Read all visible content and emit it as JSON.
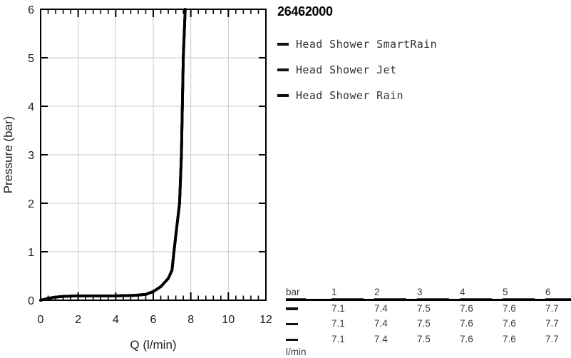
{
  "title": "26462000",
  "colors": {
    "line": "#000000",
    "grid": "#c9c9c9",
    "axis": "#000000",
    "chart_text": "#1c1c1c",
    "table_text": "#3a3a3a"
  },
  "table": {
    "corner_label": "bar",
    "unit_label": "l/min",
    "pressure_columns": [
      "1",
      "2",
      "3",
      "4",
      "5",
      "6"
    ],
    "rows": [
      {
        "series": "Head Shower SmartRain",
        "values": [
          "7.1",
          "7.4",
          "7.5",
          "7.6",
          "7.6",
          "7.7"
        ]
      },
      {
        "series": "Head Shower Jet",
        "values": [
          "7.1",
          "7.4",
          "7.5",
          "7.6",
          "7.6",
          "7.7"
        ]
      },
      {
        "series": "Head Shower Rain",
        "values": [
          "7.1",
          "7.4",
          "7.5",
          "7.6",
          "7.6",
          "7.7"
        ]
      }
    ]
  },
  "chart_data": {
    "type": "line",
    "title": "26462000",
    "xlabel": "Q (l/min)",
    "ylabel": "Pressure (bar)",
    "xlim": [
      0,
      12
    ],
    "ylim": [
      0,
      6
    ],
    "x_major_ticks": [
      0,
      2,
      4,
      6,
      8,
      10,
      12
    ],
    "x_minor_step": 0.4,
    "y_major_ticks": [
      0,
      1,
      2,
      3,
      4,
      5,
      6
    ],
    "grid": true,
    "legend_position": "right",
    "series": [
      {
        "name": "Head Shower SmartRain",
        "color": "#000000",
        "points": [
          [
            0,
            0
          ],
          [
            0.3,
            0.03
          ],
          [
            0.7,
            0.06
          ],
          [
            1.2,
            0.08
          ],
          [
            2,
            0.09
          ],
          [
            3,
            0.09
          ],
          [
            4,
            0.09
          ],
          [
            5,
            0.1
          ],
          [
            5.6,
            0.12
          ],
          [
            6,
            0.18
          ],
          [
            6.4,
            0.28
          ],
          [
            6.8,
            0.45
          ],
          [
            7.0,
            0.62
          ],
          [
            7.1,
            1.0
          ],
          [
            7.25,
            1.5
          ],
          [
            7.4,
            2.0
          ],
          [
            7.5,
            3.0
          ],
          [
            7.55,
            4.0
          ],
          [
            7.6,
            5.0
          ],
          [
            7.7,
            6.0
          ]
        ]
      },
      {
        "name": "Head Shower Jet",
        "color": "#000000",
        "points": [
          [
            0,
            0
          ],
          [
            0.3,
            0.03
          ],
          [
            0.7,
            0.06
          ],
          [
            1.2,
            0.08
          ],
          [
            2,
            0.09
          ],
          [
            3,
            0.09
          ],
          [
            4,
            0.09
          ],
          [
            5,
            0.1
          ],
          [
            5.6,
            0.12
          ],
          [
            6,
            0.18
          ],
          [
            6.4,
            0.28
          ],
          [
            6.8,
            0.45
          ],
          [
            7.0,
            0.62
          ],
          [
            7.1,
            1.0
          ],
          [
            7.25,
            1.5
          ],
          [
            7.4,
            2.0
          ],
          [
            7.5,
            3.0
          ],
          [
            7.55,
            4.0
          ],
          [
            7.6,
            5.0
          ],
          [
            7.7,
            6.0
          ]
        ]
      },
      {
        "name": "Head Shower Rain",
        "color": "#000000",
        "points": [
          [
            0,
            0
          ],
          [
            0.3,
            0.03
          ],
          [
            0.7,
            0.06
          ],
          [
            1.2,
            0.08
          ],
          [
            2,
            0.09
          ],
          [
            3,
            0.09
          ],
          [
            4,
            0.09
          ],
          [
            5,
            0.1
          ],
          [
            5.6,
            0.12
          ],
          [
            6,
            0.18
          ],
          [
            6.4,
            0.28
          ],
          [
            6.8,
            0.45
          ],
          [
            7.0,
            0.62
          ],
          [
            7.1,
            1.0
          ],
          [
            7.25,
            1.5
          ],
          [
            7.4,
            2.0
          ],
          [
            7.5,
            3.0
          ],
          [
            7.55,
            4.0
          ],
          [
            7.6,
            5.0
          ],
          [
            7.7,
            6.0
          ]
        ]
      }
    ],
    "flow_at_pressure_bar": {
      "pressure": [
        1,
        2,
        3,
        4,
        5,
        6
      ],
      "Head Shower SmartRain": [
        7.1,
        7.4,
        7.5,
        7.6,
        7.6,
        7.7
      ],
      "Head Shower Jet": [
        7.1,
        7.4,
        7.5,
        7.6,
        7.6,
        7.7
      ],
      "Head Shower Rain": [
        7.1,
        7.4,
        7.5,
        7.6,
        7.6,
        7.7
      ]
    }
  }
}
